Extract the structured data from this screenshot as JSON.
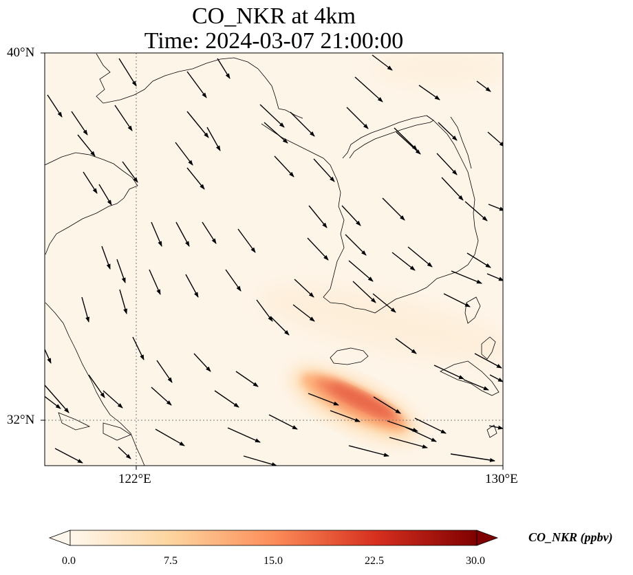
{
  "title_line1": "CO_NKR at 4km",
  "title_line2": "Time: 2024-03-07 21:00:00",
  "axes": {
    "lat_labels": [
      "40°N",
      "32°N"
    ],
    "lon_labels": [
      "122°E",
      "130°E"
    ],
    "lon_range": [
      120,
      130
    ],
    "lat_range": [
      31,
      40
    ],
    "gridlines": "dotted at 122°E and 32°N"
  },
  "colorbar": {
    "label": "CO_NKR (ppbv)",
    "ticks": [
      "0.0",
      "7.5",
      "15.0",
      "22.5",
      "30.0"
    ],
    "min": 0,
    "max": 30,
    "colormap": "OrRd",
    "extend": "both"
  },
  "plume": {
    "peak_ppbv": 16,
    "center_lon": 127.0,
    "center_lat": 32.4,
    "orientation": "elongated WNW-ESE"
  },
  "wind": {
    "direction": "northwesterly flow turning westerly in the south"
  },
  "colors": {
    "background_field": "#fef5e9",
    "plume_core": "#e8654a",
    "coastline": "#000000"
  }
}
